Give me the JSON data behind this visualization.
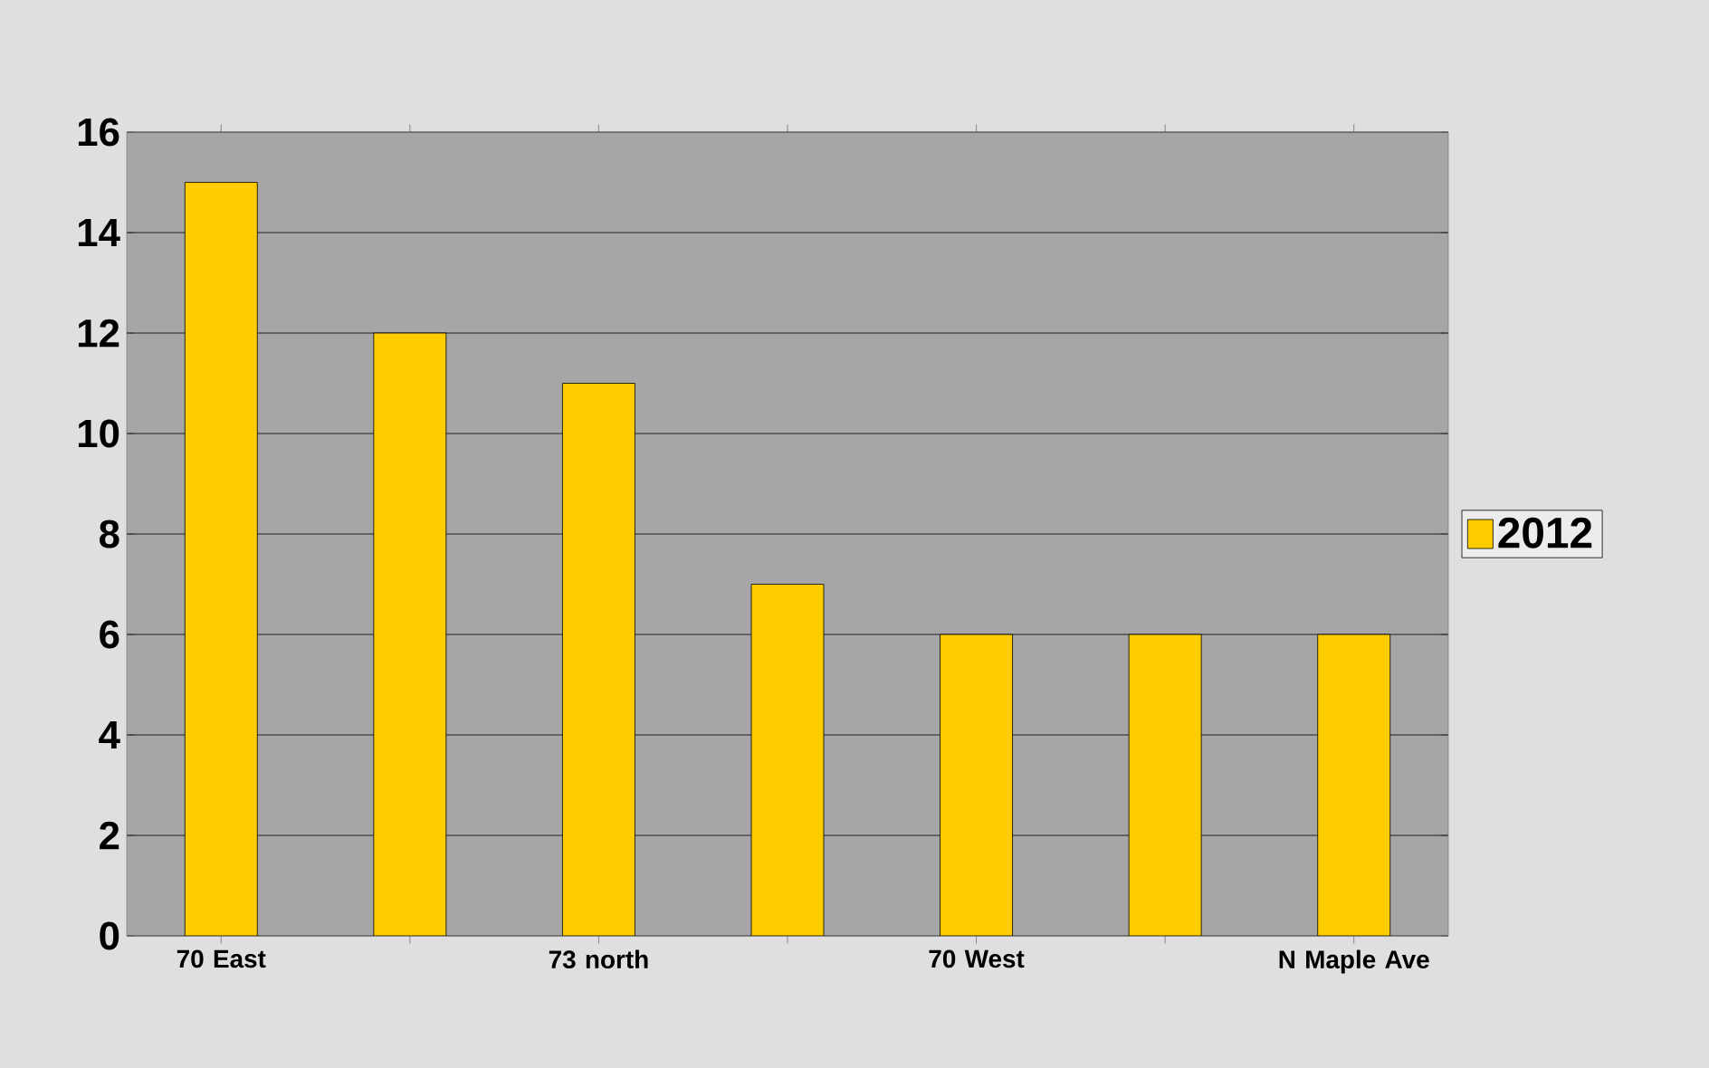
{
  "chart_data": {
    "type": "bar",
    "categories": [
      "70 East",
      null,
      "73 north",
      null,
      "70 West",
      null,
      "N Maple Ave"
    ],
    "series": [
      {
        "name": "2012",
        "color": "#ffcc00",
        "values": [
          15,
          12,
          11,
          7,
          6,
          6,
          6
        ]
      }
    ],
    "ylim": [
      0,
      16
    ],
    "yticks": [
      0,
      2,
      4,
      6,
      8,
      10,
      12,
      14,
      16
    ],
    "grid": "y",
    "legend": "right"
  }
}
